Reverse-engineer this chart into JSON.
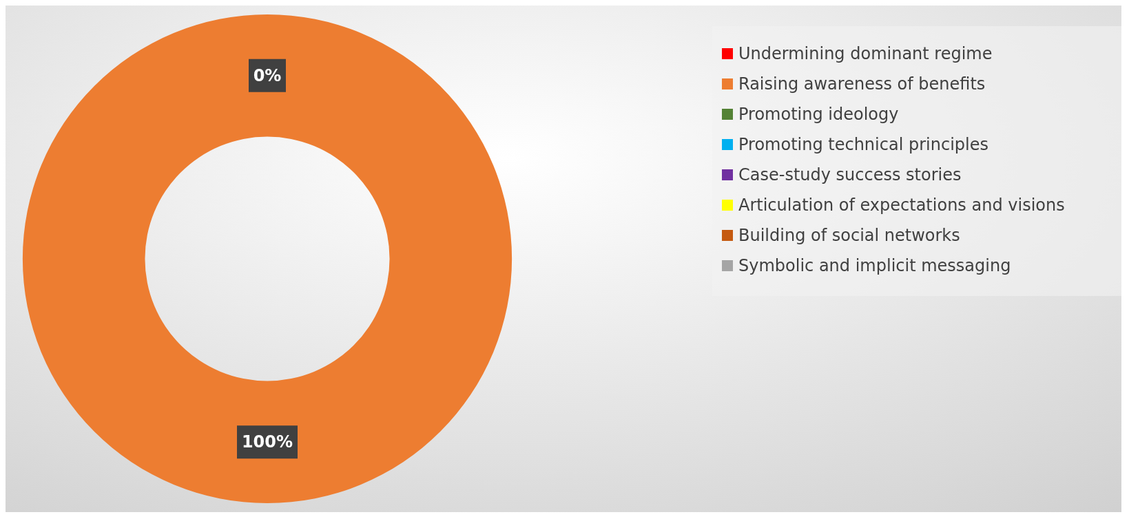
{
  "chart_data": {
    "type": "donut",
    "categories": [
      "Undermining dominant regime",
      "Raising awareness of benefits",
      "Promoting ideology",
      "Promoting technical principles",
      "Case-study success stories",
      "Articulation of expectations and visions",
      "Building of social networks",
      "Symbolic and implicit messaging"
    ],
    "values": [
      0,
      100,
      0,
      0,
      0,
      0,
      0,
      0
    ],
    "colors": [
      "#ff0000",
      "#ed7d31",
      "#548235",
      "#00b0f0",
      "#7030a0",
      "#ffff00",
      "#c55a11",
      "#a5a5a5"
    ],
    "value_labels": [
      "0%",
      "100%",
      null,
      null,
      null,
      null,
      null,
      null
    ],
    "legend": "right"
  }
}
